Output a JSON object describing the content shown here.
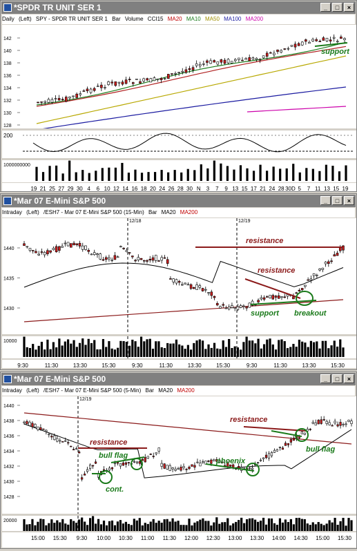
{
  "colors": {
    "ma20": "#1a7a1a",
    "ma10": "#1a7a1a",
    "ma50": "#b8a800",
    "ma100": "#1a1aa0",
    "ma200": "#cc00aa",
    "ma200_red": "#8b0000",
    "annotation_red": "#8b1a1a",
    "annotation_green": "#1a7a1a",
    "up": "#ffffff",
    "down": "#c81e1e"
  },
  "windows": [
    {
      "title": "*SPDR TR UNIT SER 1",
      "info": {
        "period": "Daily",
        "scale": "(Left)",
        "symbol": "SPY - SPDR TR UNIT SER 1",
        "type": "Bar",
        "volume": "Volume",
        "cci": "CCI15",
        "ma_a": "MA20",
        "ma_b": "MA10",
        "ma_c": "MA50",
        "ma_d": "MA100",
        "ma_e": "MA200"
      },
      "yticks": [
        "142",
        "140",
        "138",
        "136",
        "134",
        "132",
        "130",
        "128"
      ],
      "cci_ticks": [
        "200"
      ],
      "vol_label": "1000000000",
      "xticks": [
        "19",
        "21",
        "25",
        "27",
        "29",
        "30",
        "4",
        "6",
        "10",
        "12",
        "14",
        "16",
        "18",
        "20",
        "24",
        "26",
        "28",
        "30",
        "N",
        "3",
        "7",
        "9",
        "13",
        "15",
        "17",
        "21",
        "24",
        "28",
        "30D",
        "5",
        "7",
        "11",
        "13",
        "15",
        "19"
      ],
      "annotations": [
        "support"
      ]
    },
    {
      "title": "*Mar 07  E-Mini S&P 500",
      "info": {
        "period": "Intraday",
        "scale": "(Left)",
        "symbol": "/ESH7 - Mar 07  E-Mini S&P 500  (15-Min)",
        "type": "Bar",
        "ma_a": "MA20",
        "ma_e": "MA200"
      },
      "date_marks": [
        "12/18",
        "12/19"
      ],
      "yticks": [
        "1440",
        "1435",
        "1430"
      ],
      "vol_label": "10000",
      "xticks": [
        "9:30",
        "11:30",
        "13:30",
        "15:30",
        "9:30",
        "11:30",
        "13:30",
        "15:30",
        "9:30",
        "11:30",
        "13:30",
        "15:30"
      ],
      "annotations": [
        "resistance",
        "resistance",
        "support",
        "breakout"
      ]
    },
    {
      "title": "*Mar 07  E-Mini S&P 500",
      "info": {
        "period": "Intraday",
        "scale": "(Left)",
        "symbol": "/ESH7 - Mar 07  E-Mini S&P 500  (5-Min)",
        "type": "Bar",
        "ma_a": "MA20",
        "ma_e": "MA200"
      },
      "date_marks": [
        "12/19"
      ],
      "yticks": [
        "1440",
        "1438",
        "1436",
        "1434",
        "1432",
        "1430",
        "1428"
      ],
      "vol_label": "20000",
      "xticks": [
        "15:00",
        "15:30",
        "9:30",
        "10:00",
        "10:30",
        "11:00",
        "11:30",
        "12:00",
        "12:30",
        "13:00",
        "13:30",
        "14:00",
        "14:30",
        "15:00",
        "15:30"
      ],
      "annotations": [
        "resistance",
        "bull flag",
        "cont.",
        "phoenix",
        "resistance",
        "bull flag"
      ]
    }
  ]
}
